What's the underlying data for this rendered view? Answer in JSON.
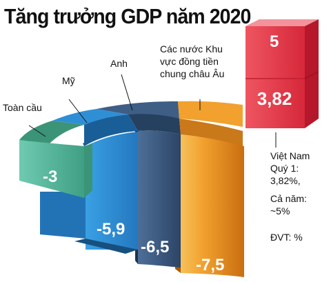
{
  "title": "Tăng trưởng GDP năm 2020",
  "chart_data": {
    "type": "bar",
    "title": "Tăng trưởng GDP năm 2020",
    "categories": [
      "Toàn cầu",
      "Mỹ",
      "Anh",
      "Các nước Khu vực đồng tiền chung châu Âu",
      "Việt Nam"
    ],
    "category_lines": [
      [
        "Toàn cầu"
      ],
      [
        "Mỹ"
      ],
      [
        "Anh"
      ],
      [
        "Các nước Khu",
        "vực đồng tiền",
        "chung châu Âu"
      ],
      [
        "Việt Nam"
      ]
    ],
    "series": [
      {
        "values": [
          -3,
          -5.9,
          -6.5,
          -7.5,
          5
        ]
      }
    ],
    "value_labels": [
      "-3",
      "-5,9",
      "-6,5",
      "-7,5",
      "5"
    ],
    "extra_values": [
      {
        "category": "Việt Nam",
        "label": "Quý 1",
        "value": 3.82,
        "value_label": "3,82"
      }
    ],
    "colors": [
      "#55b89a",
      "#2f8fd4",
      "#3e5e86",
      "#f2a12e",
      "#e73445"
    ]
  },
  "notes": {
    "vn_name": "Việt Nam",
    "q1_label": "Quý 1:",
    "q1_value": "3,82%,",
    "year_label": "Cả năm:",
    "year_value": "~5%",
    "unit": "ĐVT: %"
  }
}
